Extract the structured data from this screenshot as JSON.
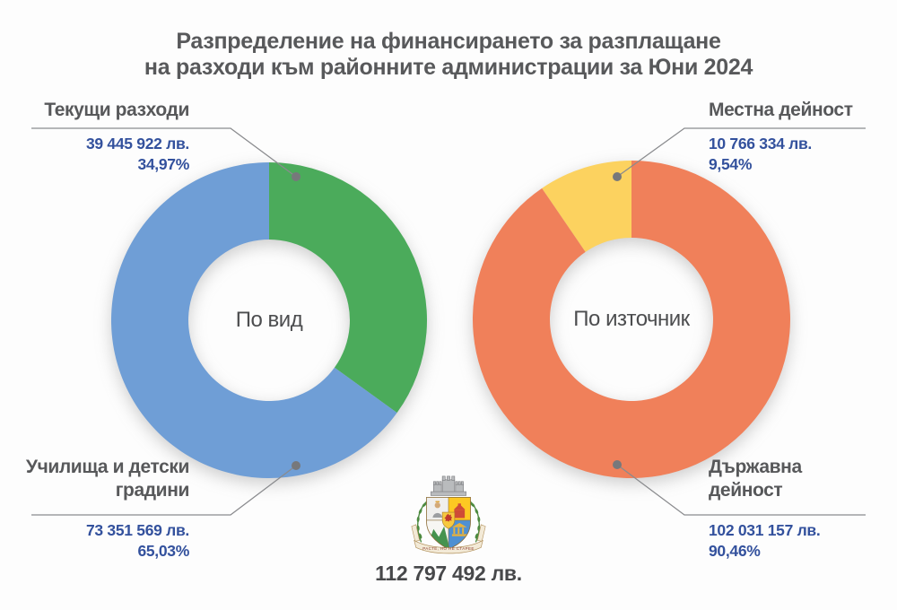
{
  "title": {
    "line1": "Разпределение на финансирането за разплащане",
    "line2": "на разходи към районните администрации за Юни 2024"
  },
  "total_label": "112 797 492 лв.",
  "logo": {
    "name": "Coat of arms of Sofia",
    "motto": "РАСТЕ, НО НЕ СТАРЕЕ"
  },
  "colors": {
    "heading_text": "#57585A",
    "value_text": "#33519D",
    "leader_line": "#8A8B8E",
    "leader_dot": "#77787B",
    "total_text": "#47484A",
    "background": "#FDFDFD"
  },
  "chart_data": [
    {
      "type": "pie",
      "donut": true,
      "center_label": "По вид",
      "start_angle_deg": 0,
      "slices": [
        {
          "label": "Текущи разходи",
          "amount_label": "39 445 922 лв.",
          "value": 39445922,
          "percent": 34.97,
          "percent_label": "34,97%",
          "color": "#4BAB5B"
        },
        {
          "label": "Училища и детски градини",
          "amount_label": "73 351 569 лв.",
          "value": 73351569,
          "percent": 65.03,
          "percent_label": "65,03%",
          "color": "#6F9ED6"
        }
      ]
    },
    {
      "type": "pie",
      "donut": true,
      "center_label": "По източник",
      "start_angle_deg": -34.344,
      "slices": [
        {
          "label": "Местна дейност",
          "amount_label": "10 766 334 лв.",
          "value": 10766334,
          "percent": 9.54,
          "percent_label": "9,54%",
          "color": "#FCD25F"
        },
        {
          "label": "Държавна дейност",
          "amount_label": "102 031 157 лв.",
          "value": 102031157,
          "percent": 90.46,
          "percent_label": "90,46%",
          "color": "#F0805A"
        }
      ]
    }
  ]
}
